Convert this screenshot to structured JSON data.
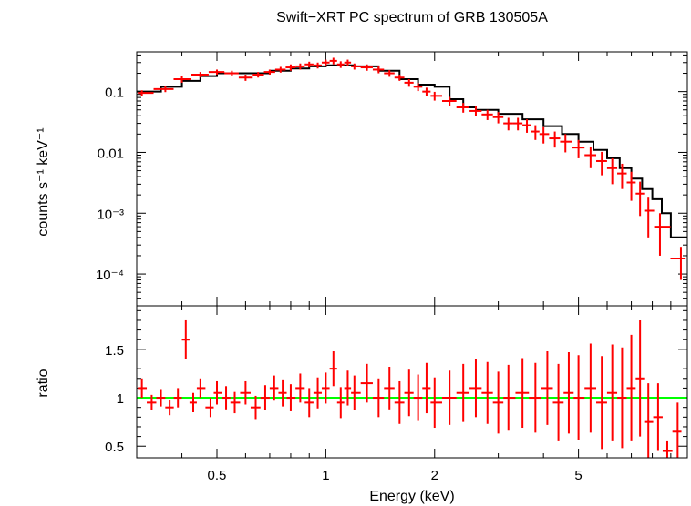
{
  "chart_data": [
    {
      "type": "scatter",
      "title": "Swift−XRT PC spectrum of GRB 130505A",
      "xlabel": "",
      "ylabel": "counts s⁻¹ keV⁻¹",
      "xscale": "log",
      "yscale": "log",
      "xlim": [
        0.3,
        10
      ],
      "ylim": [
        3e-05,
        0.45
      ],
      "y_ticks": [
        {
          "value": 0.1,
          "label": "0.1"
        },
        {
          "value": 0.01,
          "label": "0.01"
        },
        {
          "value": 0.001,
          "label": "10⁻³"
        },
        {
          "value": 0.0001,
          "label": "10⁻⁴"
        }
      ],
      "grid": false,
      "legend": "none",
      "colors": {
        "data": "#ff0000",
        "model": "#000000"
      },
      "series": [
        {
          "kind": "data_points_with_errors",
          "x": [
            0.31,
            0.36,
            0.4,
            0.45,
            0.5,
            0.55,
            0.6,
            0.65,
            0.7,
            0.75,
            0.8,
            0.85,
            0.9,
            0.95,
            1.0,
            1.05,
            1.1,
            1.15,
            1.2,
            1.3,
            1.4,
            1.5,
            1.6,
            1.7,
            1.8,
            1.9,
            2.0,
            2.2,
            2.4,
            2.6,
            2.8,
            3.0,
            3.2,
            3.4,
            3.6,
            3.8,
            4.0,
            4.3,
            4.6,
            5.0,
            5.4,
            5.8,
            6.2,
            6.6,
            7.0,
            7.4,
            7.8,
            8.4,
            9.6
          ],
          "y": [
            0.095,
            0.11,
            0.16,
            0.19,
            0.21,
            0.2,
            0.17,
            0.19,
            0.21,
            0.23,
            0.25,
            0.26,
            0.28,
            0.27,
            0.3,
            0.32,
            0.28,
            0.3,
            0.26,
            0.25,
            0.23,
            0.2,
            0.17,
            0.14,
            0.12,
            0.1,
            0.085,
            0.07,
            0.055,
            0.048,
            0.042,
            0.038,
            0.03,
            0.03,
            0.028,
            0.022,
            0.02,
            0.017,
            0.015,
            0.012,
            0.009,
            0.0072,
            0.0055,
            0.0045,
            0.0032,
            0.0021,
            0.0011,
            0.0006,
            0.00018
          ],
          "yerr": [
            0.01,
            0.012,
            0.02,
            0.02,
            0.02,
            0.02,
            0.02,
            0.02,
            0.02,
            0.025,
            0.03,
            0.03,
            0.03,
            0.03,
            0.035,
            0.04,
            0.035,
            0.035,
            0.03,
            0.03,
            0.03,
            0.025,
            0.02,
            0.02,
            0.018,
            0.016,
            0.014,
            0.012,
            0.01,
            0.009,
            0.008,
            0.008,
            0.007,
            0.007,
            0.007,
            0.006,
            0.006,
            0.005,
            0.005,
            0.004,
            0.0035,
            0.003,
            0.0025,
            0.002,
            0.0016,
            0.0012,
            0.0007,
            0.0004,
            0.0001
          ]
        },
        {
          "kind": "model_step",
          "x": [
            0.3,
            0.35,
            0.4,
            0.45,
            0.5,
            0.6,
            0.7,
            0.8,
            0.9,
            1.0,
            1.1,
            1.2,
            1.4,
            1.6,
            1.8,
            2.0,
            2.2,
            2.4,
            2.6,
            3.0,
            3.5,
            4.0,
            4.5,
            5.0,
            5.5,
            6.0,
            6.5,
            7.0,
            7.5,
            8.0,
            8.5,
            9.0,
            10.0
          ],
          "y": [
            0.1,
            0.12,
            0.15,
            0.18,
            0.2,
            0.2,
            0.22,
            0.24,
            0.26,
            0.27,
            0.27,
            0.26,
            0.22,
            0.16,
            0.13,
            0.12,
            0.075,
            0.055,
            0.05,
            0.043,
            0.035,
            0.027,
            0.02,
            0.015,
            0.011,
            0.008,
            0.0055,
            0.0037,
            0.0025,
            0.0017,
            0.001,
            0.0004,
            0.0004
          ]
        }
      ]
    },
    {
      "type": "scatter",
      "title": "",
      "xlabel": "Energy (keV)",
      "ylabel": "ratio",
      "xscale": "log",
      "yscale": "linear",
      "xlim": [
        0.3,
        10
      ],
      "ylim": [
        0.38,
        1.95
      ],
      "x_ticks": [
        {
          "value": 0.5,
          "label": "0.5"
        },
        {
          "value": 1,
          "label": "1"
        },
        {
          "value": 2,
          "label": "2"
        },
        {
          "value": 5,
          "label": "5"
        }
      ],
      "y_ticks": [
        {
          "value": 0.5,
          "label": "0.5"
        },
        {
          "value": 1,
          "label": "1"
        },
        {
          "value": 1.5,
          "label": "1.5"
        }
      ],
      "grid": false,
      "legend": "none",
      "colors": {
        "data": "#ff0000",
        "reference": "#00ff00"
      },
      "reference_line": 1,
      "series": [
        {
          "kind": "ratio_points_with_errors",
          "x": [
            0.31,
            0.33,
            0.35,
            0.37,
            0.39,
            0.41,
            0.43,
            0.45,
            0.48,
            0.5,
            0.53,
            0.56,
            0.6,
            0.64,
            0.68,
            0.72,
            0.76,
            0.8,
            0.85,
            0.9,
            0.95,
            1.0,
            1.05,
            1.1,
            1.15,
            1.2,
            1.3,
            1.4,
            1.5,
            1.6,
            1.7,
            1.8,
            1.9,
            2.0,
            2.2,
            2.4,
            2.6,
            2.8,
            3.0,
            3.2,
            3.5,
            3.8,
            4.1,
            4.4,
            4.7,
            5.0,
            5.4,
            5.8,
            6.2,
            6.6,
            7.0,
            7.4,
            7.8,
            8.3,
            8.8,
            9.4
          ],
          "y": [
            1.1,
            0.95,
            1.0,
            0.9,
            1.0,
            1.6,
            0.95,
            1.1,
            0.9,
            1.05,
            1.0,
            0.95,
            1.05,
            0.9,
            1.0,
            1.1,
            1.05,
            1.0,
            1.1,
            0.95,
            1.05,
            1.1,
            1.3,
            0.95,
            1.1,
            1.05,
            1.15,
            1.0,
            1.1,
            0.95,
            1.05,
            1.0,
            1.1,
            0.95,
            1.0,
            1.05,
            1.1,
            1.05,
            0.95,
            1.0,
            1.05,
            1.0,
            1.1,
            0.95,
            1.05,
            1.0,
            1.1,
            0.95,
            1.05,
            1.0,
            1.1,
            1.2,
            0.75,
            0.8,
            0.45,
            0.65
          ],
          "yerr": [
            0.1,
            0.08,
            0.09,
            0.08,
            0.1,
            0.2,
            0.1,
            0.1,
            0.1,
            0.12,
            0.12,
            0.11,
            0.12,
            0.12,
            0.13,
            0.13,
            0.14,
            0.14,
            0.15,
            0.15,
            0.16,
            0.16,
            0.18,
            0.16,
            0.18,
            0.18,
            0.2,
            0.2,
            0.22,
            0.22,
            0.24,
            0.24,
            0.26,
            0.26,
            0.28,
            0.3,
            0.3,
            0.32,
            0.32,
            0.34,
            0.36,
            0.36,
            0.38,
            0.4,
            0.42,
            0.44,
            0.46,
            0.48,
            0.5,
            0.52,
            0.55,
            0.6,
            0.4,
            0.35,
            0.1,
            0.3
          ]
        }
      ]
    }
  ]
}
